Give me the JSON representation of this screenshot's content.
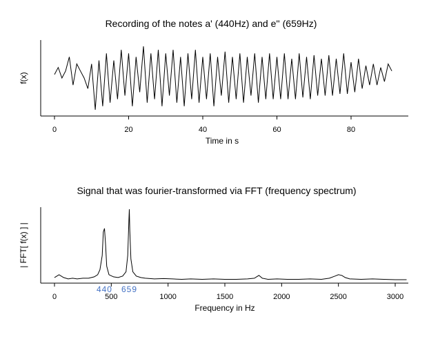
{
  "chart_data": [
    {
      "type": "line",
      "title": "Recording of the notes a' (440Hz) and e'' (659Hz)",
      "xlabel": "Time in s",
      "ylabel": "f(x)",
      "xlim": [
        0,
        92
      ],
      "x_ticks": [
        0,
        20,
        40,
        60,
        80
      ],
      "y_ticks_shown": false,
      "series": [
        {
          "x": [
            0,
            1,
            2,
            3,
            4,
            5,
            6,
            7,
            8,
            9,
            10,
            11,
            12,
            13,
            14,
            15,
            16,
            17,
            18,
            19,
            20,
            21,
            22,
            23,
            24,
            25,
            26,
            27,
            28,
            29,
            30,
            31,
            32,
            33,
            34,
            35,
            36,
            37,
            38,
            39,
            40,
            41,
            42,
            43,
            44,
            45,
            46,
            47,
            48,
            49,
            50,
            51,
            52,
            53,
            54,
            55,
            56,
            57,
            58,
            59,
            60,
            61,
            62,
            63,
            64,
            65,
            66,
            67,
            68,
            69,
            70,
            71,
            72,
            73,
            74,
            75,
            76,
            77,
            78,
            79,
            80,
            81,
            82,
            83,
            84,
            85,
            86,
            87,
            88,
            89,
            90,
            91
          ],
          "y": [
            0.1,
            0.3,
            0.0,
            0.2,
            0.6,
            -0.2,
            0.4,
            0.2,
            0.0,
            -0.3,
            0.4,
            -0.9,
            0.5,
            -0.8,
            0.7,
            -0.7,
            0.5,
            -0.6,
            0.8,
            -0.5,
            0.7,
            -0.8,
            0.6,
            -0.4,
            0.9,
            -0.7,
            0.7,
            -0.6,
            0.8,
            -0.8,
            0.7,
            -0.5,
            0.8,
            -0.7,
            0.6,
            -0.8,
            0.7,
            -0.6,
            0.8,
            -0.7,
            0.6,
            -0.6,
            0.7,
            -0.8,
            0.6,
            -0.5,
            0.75,
            -0.7,
            0.6,
            -0.6,
            0.7,
            -0.7,
            0.6,
            -0.5,
            0.7,
            -0.7,
            0.6,
            -0.6,
            0.7,
            -0.6,
            0.6,
            -0.6,
            0.7,
            -0.6,
            0.55,
            -0.6,
            0.7,
            -0.55,
            0.6,
            -0.6,
            0.65,
            -0.5,
            0.55,
            -0.5,
            0.65,
            -0.5,
            0.55,
            -0.45,
            0.7,
            -0.45,
            0.45,
            -0.4,
            0.55,
            -0.3,
            0.35,
            -0.2,
            0.4,
            -0.2,
            0.3,
            -0.1,
            0.4,
            0.2
          ]
        }
      ]
    },
    {
      "type": "line",
      "title": "Signal that was fourier-transformed via FFT (frequency spectrum)",
      "xlabel": "Frequency in Hz",
      "ylabel": "| FFT[ f(x) ] |",
      "xlim": [
        -100,
        3100
      ],
      "x_ticks": [
        0,
        500,
        1000,
        1500,
        2000,
        2500,
        3000
      ],
      "y_ticks_shown": false,
      "annotations": [
        {
          "label": "440",
          "x": 440,
          "color": "#4472c4"
        },
        {
          "label": "659",
          "x": 659,
          "color": "#4472c4"
        }
      ],
      "series": [
        {
          "x": [
            0,
            40,
            80,
            120,
            160,
            200,
            250,
            300,
            350,
            380,
            400,
            420,
            430,
            440,
            450,
            460,
            480,
            520,
            560,
            600,
            630,
            645,
            655,
            659,
            663,
            673,
            690,
            720,
            760,
            800,
            880,
            960,
            1040,
            1120,
            1200,
            1300,
            1400,
            1500,
            1600,
            1700,
            1760,
            1800,
            1830,
            1880,
            1960,
            2050,
            2150,
            2250,
            2350,
            2420,
            2470,
            2500,
            2530,
            2560,
            2600,
            2700,
            2800,
            2900,
            3000,
            3100
          ],
          "y": [
            0.04,
            0.08,
            0.04,
            0.02,
            0.03,
            0.02,
            0.03,
            0.03,
            0.05,
            0.08,
            0.15,
            0.35,
            0.68,
            0.73,
            0.5,
            0.2,
            0.08,
            0.05,
            0.04,
            0.06,
            0.12,
            0.35,
            0.85,
            1.0,
            0.7,
            0.3,
            0.12,
            0.06,
            0.04,
            0.03,
            0.02,
            0.025,
            0.02,
            0.015,
            0.02,
            0.015,
            0.02,
            0.015,
            0.015,
            0.02,
            0.03,
            0.07,
            0.03,
            0.015,
            0.02,
            0.015,
            0.015,
            0.02,
            0.015,
            0.03,
            0.06,
            0.08,
            0.07,
            0.04,
            0.02,
            0.015,
            0.02,
            0.015,
            0.01,
            0.01
          ]
        }
      ]
    }
  ]
}
